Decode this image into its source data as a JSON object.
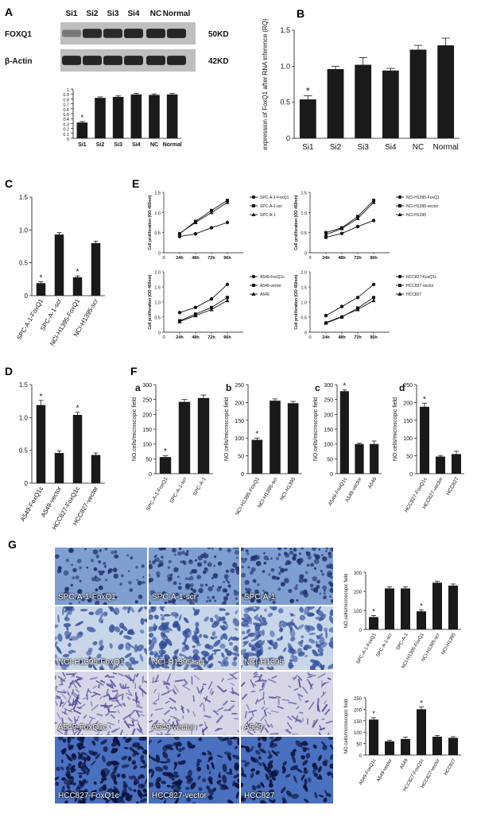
{
  "panel_letters": {
    "A": "A",
    "B": "B",
    "C": "C",
    "D": "D",
    "E": "E",
    "F": "F",
    "G": "G"
  },
  "blot": {
    "lanes": [
      "Si1",
      "Si2",
      "Si3",
      "Si4",
      "NC",
      "Normal"
    ],
    "rows": [
      {
        "label": "FOXQ1",
        "size": "50KD",
        "intensity": [
          0.25,
          0.9,
          0.9,
          0.95,
          0.95,
          0.95
        ]
      },
      {
        "label": "β-Actin",
        "size": "42KD",
        "intensity": [
          0.95,
          0.95,
          0.95,
          0.95,
          0.95,
          0.95
        ]
      }
    ]
  },
  "chart_data": [
    {
      "id": "A-bar",
      "type": "bar",
      "categories": [
        "Si1",
        "Si2",
        "Si3",
        "Si4",
        "NC",
        "Normal"
      ],
      "values": [
        0.32,
        0.82,
        0.84,
        0.89,
        0.88,
        0.89
      ],
      "errors": [
        0.02,
        0.02,
        0.02,
        0.02,
        0.02,
        0.02
      ],
      "ylim": [
        0,
        1.0
      ],
      "yticks": [
        "0",
        "0.1",
        "0.2",
        "0.3",
        "0.4",
        "0.5",
        "0.6",
        "0.7",
        "0.8",
        "0.9",
        "1"
      ],
      "sig": [
        true,
        false,
        false,
        false,
        false,
        false
      ],
      "ylabel": ""
    },
    {
      "id": "B",
      "type": "bar",
      "categories": [
        "Si1",
        "Si2",
        "Si3",
        "Si4",
        "NC",
        "Normal"
      ],
      "values": [
        0.54,
        0.96,
        1.02,
        0.94,
        1.23,
        1.29
      ],
      "errors": [
        0.05,
        0.04,
        0.1,
        0.03,
        0.06,
        0.1
      ],
      "ylim": [
        0,
        1.5
      ],
      "yticks": [
        "0",
        "0.5",
        "1.0",
        "1.5"
      ],
      "sig": [
        true,
        false,
        false,
        false,
        false,
        false
      ],
      "ylabel": "expression of FoxQ1 after RNA inference (RQ)"
    },
    {
      "id": "C",
      "type": "bar",
      "categories": [
        "SPC-A-1-FoxQ1",
        "SPC-A-1-scr",
        "NCI-H1395-FoxQ1",
        "NCI-H1395-scr"
      ],
      "values": [
        0.19,
        0.93,
        0.28,
        0.8
      ],
      "errors": [
        0.02,
        0.03,
        0.02,
        0.03
      ],
      "ylim": [
        0,
        1.5
      ],
      "yticks": [
        "0",
        "0.5",
        "1.0",
        "1.5"
      ],
      "sig": [
        true,
        false,
        true,
        false
      ],
      "ylabel": ""
    },
    {
      "id": "D",
      "type": "bar",
      "categories": [
        "A549-FoxQ1c",
        "A549-vector",
        "HCC827-FoxQ1c",
        "HCC827-vector"
      ],
      "values": [
        1.19,
        0.46,
        1.04,
        0.43
      ],
      "errors": [
        0.07,
        0.03,
        0.04,
        0.03
      ],
      "ylim": [
        0,
        1.5
      ],
      "yticks": [
        "0",
        "0.5",
        "1.0",
        "1.5"
      ],
      "sig": [
        true,
        false,
        true,
        false
      ],
      "ylabel": ""
    },
    {
      "id": "E1",
      "type": "line",
      "x": [
        "24h",
        "48h",
        "72h",
        "96h"
      ],
      "ylim": [
        0,
        1.5
      ],
      "yticks": [
        "0",
        "0.5",
        "1.0",
        "1.5"
      ],
      "xticks_extra": [
        "0"
      ],
      "ylabel": "Cell proliferation (OD 450nm)",
      "series": [
        {
          "name": "SPC-A-1-FoxQ1",
          "values": [
            0.4,
            0.47,
            0.62,
            0.75
          ],
          "marker": "circle"
        },
        {
          "name": "SPC-A-1-scr",
          "values": [
            0.47,
            0.78,
            1.05,
            1.3
          ],
          "marker": "square"
        },
        {
          "name": "SPC-A-1",
          "values": [
            0.48,
            0.75,
            1.0,
            1.25
          ],
          "marker": "triangle"
        }
      ]
    },
    {
      "id": "E2",
      "type": "line",
      "x": [
        "24h",
        "48h",
        "72h",
        "96h"
      ],
      "ylim": [
        0,
        1.5
      ],
      "yticks": [
        "0",
        "0.5",
        "1.0",
        "1.5"
      ],
      "xticks_extra": [
        "0"
      ],
      "ylabel": "Cell proliferation (OD 450nm)",
      "series": [
        {
          "name": "NCI-H1395-FoxQ1",
          "values": [
            0.38,
            0.48,
            0.65,
            0.8
          ],
          "marker": "circle"
        },
        {
          "name": "NCI-H1395-vector",
          "values": [
            0.5,
            0.62,
            0.9,
            1.3
          ],
          "marker": "square"
        },
        {
          "name": "NCI-H1395",
          "values": [
            0.45,
            0.6,
            0.85,
            1.25
          ],
          "marker": "triangle"
        }
      ]
    },
    {
      "id": "E3",
      "type": "line",
      "x": [
        "24h",
        "48h",
        "72h",
        "96h"
      ],
      "ylim": [
        0,
        2.0
      ],
      "yticks": [
        "0",
        "0.5",
        "1.0",
        "1.5",
        "2.0"
      ],
      "xticks_extra": [
        "0"
      ],
      "ylabel": "Cell proliferation (OD 450nm)",
      "series": [
        {
          "name": "A549-FoxQ1c",
          "values": [
            0.65,
            0.82,
            1.1,
            1.58
          ],
          "marker": "circle"
        },
        {
          "name": "A549-vector",
          "values": [
            0.38,
            0.6,
            0.82,
            1.15
          ],
          "marker": "square"
        },
        {
          "name": "A549",
          "values": [
            0.35,
            0.55,
            0.75,
            1.05
          ],
          "marker": "triangle"
        }
      ]
    },
    {
      "id": "E4",
      "type": "line",
      "x": [
        "24h",
        "48h",
        "72h",
        "96h"
      ],
      "ylim": [
        0,
        2.0
      ],
      "yticks": [
        "0",
        "0.5",
        "1.0",
        "1.5",
        "2.0"
      ],
      "xticks_extra": [
        "0"
      ],
      "ylabel": "Cell proliferation (OD 450nm)",
      "series": [
        {
          "name": "HCC827-FoxQ1c",
          "values": [
            0.55,
            0.85,
            1.15,
            1.58
          ],
          "marker": "circle"
        },
        {
          "name": "HCC827-vector",
          "values": [
            0.3,
            0.5,
            0.8,
            1.15
          ],
          "marker": "square"
        },
        {
          "name": "HCC827",
          "values": [
            0.32,
            0.52,
            0.75,
            1.05
          ],
          "marker": "triangle"
        }
      ]
    },
    {
      "id": "Fa",
      "type": "bar",
      "categories": [
        "SPC-A-1-FoxQ1",
        "SPC-A-1-scr",
        "SPC-A-1"
      ],
      "values": [
        56,
        242,
        255
      ],
      "errors": [
        5,
        8,
        10
      ],
      "ylim": [
        0,
        300
      ],
      "yticks": [
        "0",
        "50",
        "100",
        "150",
        "200",
        "250",
        "300"
      ],
      "sig": [
        true,
        false,
        false
      ],
      "ylabel": "NO.cells/microscopic field"
    },
    {
      "id": "Fb",
      "type": "bar",
      "categories": [
        "NCI-H1395-FoxQ1",
        "NCI-H1395-scr",
        "NCI-H1395"
      ],
      "values": [
        95,
        205,
        198
      ],
      "errors": [
        5,
        5,
        5
      ],
      "ylim": [
        0,
        250
      ],
      "yticks": [
        "0",
        "50",
        "100",
        "150",
        "200",
        "250"
      ],
      "sig": [
        true,
        false,
        false
      ],
      "ylabel": "NO.cells/microscopic field"
    },
    {
      "id": "Fc",
      "type": "bar",
      "categories": [
        "A549-FoxQ1c",
        "A549-vector",
        "A549"
      ],
      "values": [
        278,
        100,
        100
      ],
      "errors": [
        4,
        3,
        10
      ],
      "ylim": [
        0,
        300
      ],
      "yticks": [
        "0",
        "50",
        "100",
        "150",
        "200",
        "250",
        "300"
      ],
      "sig": [
        true,
        false,
        false
      ],
      "ylabel": "NO.cells/microscopic field"
    },
    {
      "id": "Fd",
      "type": "bar",
      "categories": [
        "HCC827-FoxQ1c",
        "HCC827-vector",
        "HCC827"
      ],
      "values": [
        188,
        48,
        55
      ],
      "errors": [
        10,
        3,
        8
      ],
      "ylim": [
        0,
        250
      ],
      "yticks": [
        "0",
        "50",
        "100",
        "150",
        "200",
        "250"
      ],
      "sig": [
        true,
        false,
        false
      ],
      "ylabel": "NO.cells/microscopic field"
    },
    {
      "id": "G1",
      "type": "bar",
      "categories": [
        "SPC-A-1-FoxQ1",
        "SPC-A-1-scr",
        "SPC-A-1",
        "NCI-H1395-FoxQ1",
        "NCI-H1395-scr",
        "NCI-H1395"
      ],
      "values": [
        65,
        215,
        215,
        95,
        245,
        230
      ],
      "errors": [
        8,
        8,
        8,
        8,
        8,
        8
      ],
      "ylim": [
        0,
        300
      ],
      "yticks": [
        "0",
        "100",
        "200",
        "300"
      ],
      "sig": [
        true,
        false,
        false,
        true,
        false,
        false
      ],
      "ylabel": "NO.cells/microscopic field"
    },
    {
      "id": "G2",
      "type": "bar",
      "categories": [
        "A549-FoxQ1c",
        "A549-vector",
        "A549",
        "HCC827-FoxQ1c",
        "HCC827-vector",
        "HCC827"
      ],
      "values": [
        155,
        60,
        70,
        200,
        80,
        75
      ],
      "errors": [
        8,
        5,
        8,
        10,
        5,
        5
      ],
      "ylim": [
        0,
        250
      ],
      "yticks": [
        "0",
        "50",
        "100",
        "150",
        "200",
        "250"
      ],
      "sig": [
        true,
        false,
        false,
        true,
        false,
        false
      ],
      "ylabel": "NO.cells/microscopic field"
    }
  ],
  "micrographs": [
    {
      "caption": "SPC-A-1-FoxQ1",
      "stain": "round",
      "density": 0.25
    },
    {
      "caption": "SPC-A-1-scr",
      "stain": "round",
      "density": 0.6
    },
    {
      "caption": "SPC-A-1",
      "stain": "round",
      "density": 0.65
    },
    {
      "caption": "NCI-H1395-FoxQ1",
      "stain": "spread",
      "density": 0.35
    },
    {
      "caption": "NCI-H1395-scr",
      "stain": "spread",
      "density": 0.7
    },
    {
      "caption": "NCI-H1395",
      "stain": "spread",
      "density": 0.65
    },
    {
      "caption": "A549-FoxQ1c",
      "stain": "fiber",
      "density": 0.9
    },
    {
      "caption": "A549-vector",
      "stain": "fiber",
      "density": 0.35
    },
    {
      "caption": "A549",
      "stain": "fiber",
      "density": 0.4
    },
    {
      "caption": "HCC827-FoxQ1c",
      "stain": "dark",
      "density": 0.9
    },
    {
      "caption": "HCC827-vector",
      "stain": "dark",
      "density": 0.45
    },
    {
      "caption": "HCC827",
      "stain": "dark",
      "density": 0.45
    }
  ],
  "colors": {
    "bar": "#1a1a1a",
    "axis": "#111111",
    "blot_bg": "#bfbfbf",
    "band": "#1e1e1e",
    "micro_bg_round": "#7f9fd0",
    "micro_bg_spread": "#c8d6ea",
    "micro_bg_fiber": "#d8d6e6",
    "micro_bg_dark": "#4a70c0",
    "cell": "#22306e"
  }
}
